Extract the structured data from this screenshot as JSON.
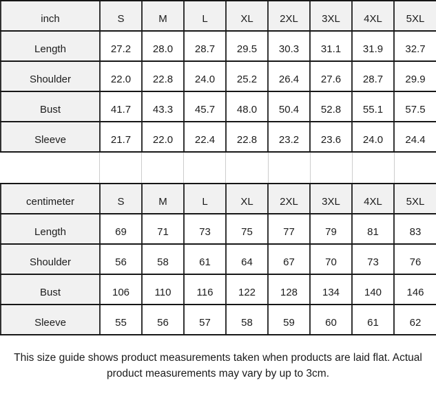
{
  "colors": {
    "header_bg": "#f1f1f1",
    "cell_bg": "#ffffff",
    "horizontal_border": "#161616",
    "vertical_border": "#333333",
    "light_border": "#cccccc",
    "text": "#1c1c1c"
  },
  "sizes": [
    "S",
    "M",
    "L",
    "XL",
    "2XL",
    "3XL",
    "4XL",
    "5XL"
  ],
  "tables": [
    {
      "unit": "inch",
      "rows": [
        {
          "label": "Length",
          "values": [
            "27.2",
            "28.0",
            "28.7",
            "29.5",
            "30.3",
            "31.1",
            "31.9",
            "32.7"
          ]
        },
        {
          "label": "Shoulder",
          "values": [
            "22.0",
            "22.8",
            "24.0",
            "25.2",
            "26.4",
            "27.6",
            "28.7",
            "29.9"
          ]
        },
        {
          "label": "Bust",
          "values": [
            "41.7",
            "43.3",
            "45.7",
            "48.0",
            "50.4",
            "52.8",
            "55.1",
            "57.5"
          ]
        },
        {
          "label": "Sleeve",
          "values": [
            "21.7",
            "22.0",
            "22.4",
            "22.8",
            "23.2",
            "23.6",
            "24.0",
            "24.4"
          ]
        }
      ]
    },
    {
      "unit": "centimeter",
      "rows": [
        {
          "label": "Length",
          "values": [
            "69",
            "71",
            "73",
            "75",
            "77",
            "79",
            "81",
            "83"
          ]
        },
        {
          "label": "Shoulder",
          "values": [
            "56",
            "58",
            "61",
            "64",
            "67",
            "70",
            "73",
            "76"
          ]
        },
        {
          "label": "Bust",
          "values": [
            "106",
            "110",
            "116",
            "122",
            "128",
            "134",
            "140",
            "146"
          ]
        },
        {
          "label": "Sleeve",
          "values": [
            "55",
            "56",
            "57",
            "58",
            "59",
            "60",
            "61",
            "62"
          ]
        }
      ]
    }
  ],
  "footer": {
    "lines": [
      "This size guide shows product measurements taken when products are laid flat. Actual",
      "product measurements may vary by up to 3cm."
    ]
  }
}
